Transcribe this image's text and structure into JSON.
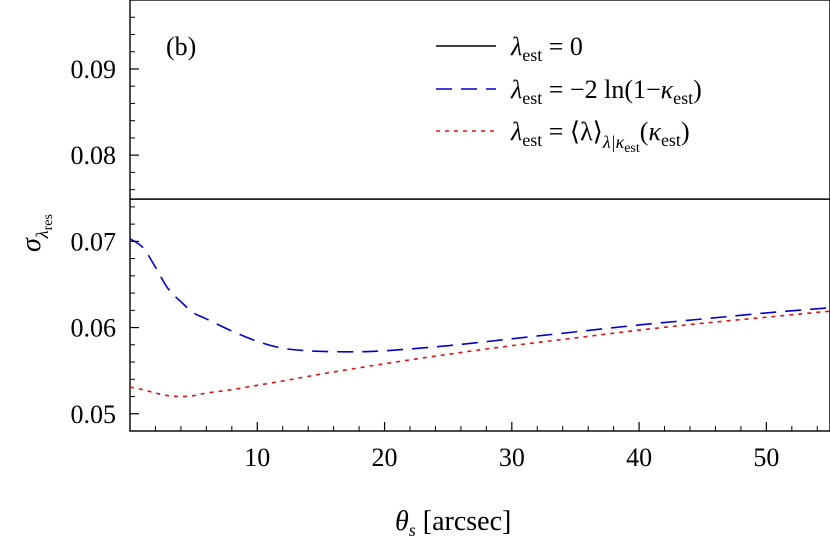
{
  "chart_data": {
    "type": "line",
    "panel_label": "(b)",
    "xlabel": {
      "symbol": "θ",
      "subscript": "s",
      "unit": " [arcsec]"
    },
    "ylabel": {
      "symbol": "σ",
      "subscript": "λ",
      "subsubscript": "res"
    },
    "xlim": [
      0,
      55
    ],
    "ylim": [
      0.048,
      0.098
    ],
    "xticks": [
      10,
      20,
      30,
      40,
      50
    ],
    "yticks": [
      0.05,
      0.06,
      0.07,
      0.08,
      0.09
    ],
    "ytick_labels": [
      "0.05",
      "0.06",
      "0.07",
      "0.08",
      "0.09"
    ],
    "series": [
      {
        "name": "λest = 0",
        "color": "#000000",
        "style": "solid",
        "x": [
          0,
          55
        ],
        "y": [
          0.0749,
          0.0749
        ],
        "legend": {
          "lhs": "λ",
          "lhs_sub": "est",
          "rhs": " = 0"
        }
      },
      {
        "name": "λest = −2 ln(1−κest)",
        "color": "#0000cc",
        "style": "dashed",
        "x": [
          0,
          1,
          2,
          3,
          4,
          5,
          6,
          8,
          10,
          12,
          14,
          16,
          18,
          20,
          25,
          30,
          35,
          40,
          45,
          50,
          55
        ],
        "y": [
          0.0703,
          0.0693,
          0.067,
          0.0645,
          0.063,
          0.0617,
          0.061,
          0.0596,
          0.0584,
          0.0576,
          0.0573,
          0.0572,
          0.0572,
          0.0573,
          0.0579,
          0.0587,
          0.0595,
          0.0603,
          0.061,
          0.0617,
          0.0623
        ],
        "legend": {
          "lhs": "λ",
          "lhs_sub": "est",
          "rhs": " = −2 ln(1−",
          "kappa": "κ",
          "kappa_sub": "est",
          "tail": ")"
        }
      },
      {
        "name": "λest = ⟨λ⟩λ|κest(κest)",
        "color": "#dd1111",
        "style": "dotted",
        "x": [
          0,
          1,
          2,
          3,
          4,
          5,
          6,
          8,
          10,
          12,
          15,
          20,
          25,
          30,
          35,
          40,
          45,
          50,
          55
        ],
        "y": [
          0.0531,
          0.0528,
          0.0524,
          0.0521,
          0.052,
          0.0521,
          0.0524,
          0.0528,
          0.0533,
          0.0538,
          0.0546,
          0.0558,
          0.0569,
          0.0579,
          0.0588,
          0.0597,
          0.0605,
          0.0612,
          0.0619
        ],
        "legend": {
          "lhs": "λ",
          "lhs_sub": "est",
          "rhs": " = ⟨λ⟩",
          "cond_sub": "λ|κ",
          "cond_subsub": "est",
          "paren_open": "(",
          "kappa": "κ",
          "kappa_sub": "est",
          "tail": ")"
        }
      }
    ]
  }
}
